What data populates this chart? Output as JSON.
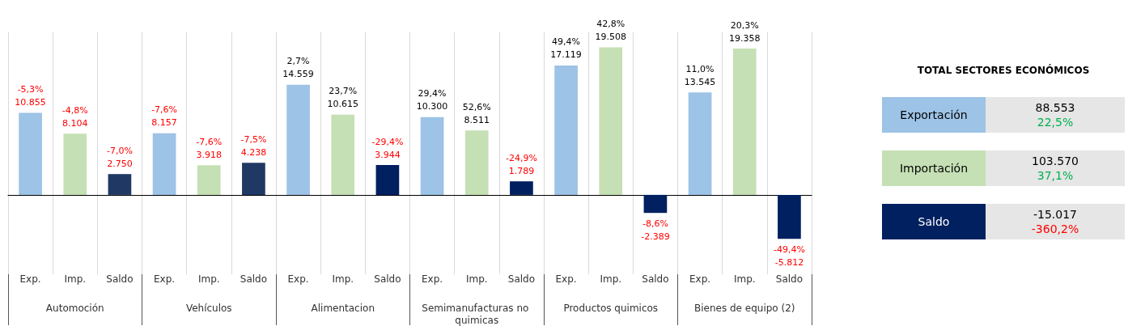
{
  "chart_data": [
    {
      "type": "bar",
      "categories": [
        "Exp.",
        "Imp.",
        "Saldo",
        "Exp.",
        "Imp.",
        "Saldo",
        "Exp.",
        "Imp.",
        "Saldo",
        "Exp.",
        "Imp.",
        "Saldo",
        "Exp.",
        "Imp.",
        "Saldo",
        "Exp.",
        "Imp.",
        "Saldo"
      ],
      "values": [
        10855,
        8104,
        2750,
        8157,
        3918,
        4238,
        14559,
        10615,
        3944,
        10300,
        8511,
        1789,
        17119,
        19508,
        -2389,
        13545,
        19358,
        -5812
      ],
      "colors": [
        "#9dc3e6",
        "#c5e0b4",
        "#203864",
        "#9dc3e6",
        "#c5e0b4",
        "#203864",
        "#9dc3e6",
        "#c5e0b4",
        "#002060",
        "#9dc3e6",
        "#c5e0b4",
        "#002060",
        "#9dc3e6",
        "#c5e0b4",
        "#002060",
        "#9dc3e6",
        "#c5e0b4",
        "#002060"
      ],
      "value_labels": [
        "-5,3%\n10.855",
        "-4,8%\n8.104",
        "-7,0%\n2.750",
        "-7,6%\n8.157",
        "-7,6%\n3.918",
        "-7,5%\n4.238",
        "2,7%\n14.559",
        "23,7%\n10.615",
        "-29,4%\n3.944",
        "29,4%\n10.300",
        "52,6%\n8.511",
        "-24,9%\n1.789",
        "49,4%\n17.119",
        "42,8%\n19.508",
        "-8,6%\n-2.389",
        "11,0%\n13.545",
        "20,3%\n19.358",
        "-49,4%\n-5.812"
      ],
      "annotations": [
        "Automoción",
        "Vehículos",
        "Alimentacion",
        "Semimanufacturas no quimicas",
        "Productos quimicos",
        "Bienes de equipo (2)"
      ]
    },
    {
      "type": "other",
      "title": "TOTAL SECTORES ECONÓMICOS",
      "categories": [
        "Exportación",
        "Importación",
        "Saldo"
      ],
      "colors": [
        "#9dc3e6",
        "#c5e0b4",
        "#002060"
      ],
      "value_labels": [
        "88.553",
        "103.570",
        "-15.017"
      ],
      "annotations": [
        "22,5%",
        "37,1%",
        "-360,2%"
      ]
    }
  ]
}
